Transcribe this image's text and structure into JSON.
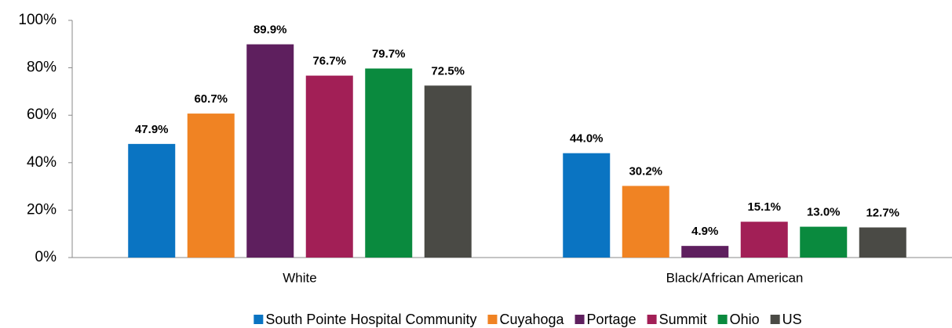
{
  "chart_data": {
    "type": "bar",
    "categories": [
      "White",
      "Black/African American"
    ],
    "series": [
      {
        "name": "South Pointe Hospital Community",
        "color": "#0a74c2",
        "values": [
          47.9,
          44.0
        ],
        "value_labels": [
          "47.9%",
          "44.0%"
        ]
      },
      {
        "name": "Cuyahoga",
        "color": "#f08323",
        "values": [
          60.7,
          30.2
        ],
        "value_labels": [
          "60.7%",
          "30.2%"
        ]
      },
      {
        "name": "Portage",
        "color": "#5e1f5e",
        "values": [
          89.9,
          4.9
        ],
        "value_labels": [
          "89.9%",
          "4.9%"
        ]
      },
      {
        "name": "Summit",
        "color": "#a21f56",
        "values": [
          76.7,
          15.1
        ],
        "value_labels": [
          "76.7%",
          "15.1%"
        ]
      },
      {
        "name": "Ohio",
        "color": "#0a8a3e",
        "values": [
          79.7,
          13.0
        ],
        "value_labels": [
          "79.7%",
          "13.0%"
        ]
      },
      {
        "name": "US",
        "color": "#4a4a45",
        "values": [
          72.5,
          12.7
        ],
        "value_labels": [
          "72.5%",
          "12.7%"
        ]
      }
    ],
    "ylim": [
      0,
      100
    ],
    "yticks": [
      {
        "value": 0,
        "label": "0%"
      },
      {
        "value": 20,
        "label": "20%"
      },
      {
        "value": 40,
        "label": "40%"
      },
      {
        "value": 60,
        "label": "60%"
      },
      {
        "value": 80,
        "label": "80%"
      },
      {
        "value": 100,
        "label": "100%"
      }
    ],
    "grid": false,
    "legend": "bottom"
  }
}
